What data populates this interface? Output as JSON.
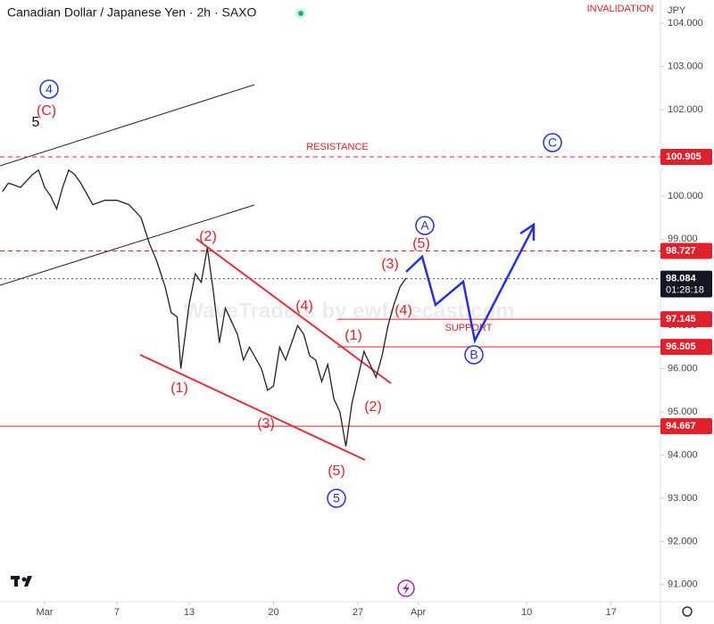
{
  "chart_data": {
    "type": "line",
    "title": "Canadian Dollar / Japanese Yen · 2h · SAXO",
    "currency": "JPY",
    "countdown": "01:28:18",
    "watermark": "WaveTraders by ewforecast.com",
    "xlim": [
      -2.7,
      52.1
    ],
    "ylim": [
      90.5,
      104.54
    ],
    "xticks": [
      {
        "value": 1,
        "label": "Mar"
      },
      7,
      13,
      20,
      27,
      {
        "value": 32,
        "label": "Apr"
      },
      10,
      17
    ],
    "yticks": [
      {
        "value": 91,
        "label": "91.000"
      },
      {
        "value": 92,
        "label": "92.000"
      },
      {
        "value": 93,
        "label": "93.000"
      },
      {
        "value": 94,
        "label": "94.000"
      },
      {
        "value": 95,
        "label": "95.000"
      },
      {
        "value": 96,
        "label": "96.000"
      },
      {
        "value": 97,
        "label": "97.000"
      },
      {
        "value": 98,
        "label": "98.000"
      },
      {
        "value": 99,
        "label": "99.000"
      },
      {
        "value": 100,
        "label": "100.000"
      },
      {
        "value": 101,
        "label": "101.000"
      },
      {
        "value": 102,
        "label": "102.000"
      },
      {
        "value": 103,
        "label": "103.000"
      },
      {
        "value": 104,
        "label": "104.000"
      }
    ],
    "series": [
      {
        "name": "CADJPY",
        "color": "#222222",
        "x": [
          -2.5,
          -2,
          -1,
          0,
          0.5,
          1,
          1.5,
          2,
          2.5,
          3,
          3.5,
          4,
          5,
          6,
          7,
          8,
          9,
          9.7,
          10.3,
          11,
          11.5,
          12,
          12.3,
          13,
          13.5,
          14,
          14.5,
          15,
          15.5,
          16,
          17,
          17.5,
          18,
          19,
          19.5,
          20,
          20.5,
          21,
          22,
          22.5,
          23,
          23.5,
          24,
          24.5,
          25,
          25.5,
          26,
          26.5,
          27,
          27.5,
          28,
          28.5,
          29,
          29.5,
          30,
          30.5,
          31
        ],
        "values": [
          100.1,
          100.3,
          100.2,
          100.5,
          100.6,
          100.2,
          100.0,
          99.7,
          100.2,
          100.6,
          100.5,
          100.3,
          99.8,
          99.9,
          99.9,
          99.8,
          99.5,
          98.9,
          98.5,
          97.9,
          97.3,
          97.2,
          96.0,
          97.5,
          98.2,
          98.0,
          98.8,
          97.8,
          96.6,
          97.4,
          96.8,
          96.2,
          96.5,
          96.0,
          95.5,
          95.6,
          96.5,
          96.2,
          97.0,
          96.8,
          96.3,
          96.2,
          95.7,
          96.1,
          95.3,
          95.0,
          94.2,
          95.2,
          95.8,
          96.4,
          96.1,
          95.8,
          96.3,
          97.0,
          97.5,
          97.9,
          98.1
        ]
      }
    ],
    "levels": [
      {
        "value": 100.905,
        "color": "#e0202a",
        "line": "dashed"
      },
      {
        "value": 98.727,
        "color": "#e0202a",
        "line": "dashed"
      },
      {
        "value": 98.084,
        "color": "#555555",
        "line": "dotted"
      },
      {
        "value": 97.145,
        "color": "#e0202a",
        "line": "solid"
      },
      {
        "value": 96.505,
        "color": "#e0202a",
        "line": "solid"
      },
      {
        "value": 94.667,
        "color": "#e0202a",
        "line": "solid"
      }
    ],
    "annotations": [
      "4",
      "(C)",
      "5",
      "RESISTANCE",
      "C",
      "(2)",
      "(4)",
      "(1)",
      "(3)",
      "(1)",
      "(2)",
      "(5)",
      "5",
      "(3)",
      "(4)",
      "(5)",
      "A",
      "SUPPORT",
      "B",
      "INVALIDATION"
    ]
  }
}
